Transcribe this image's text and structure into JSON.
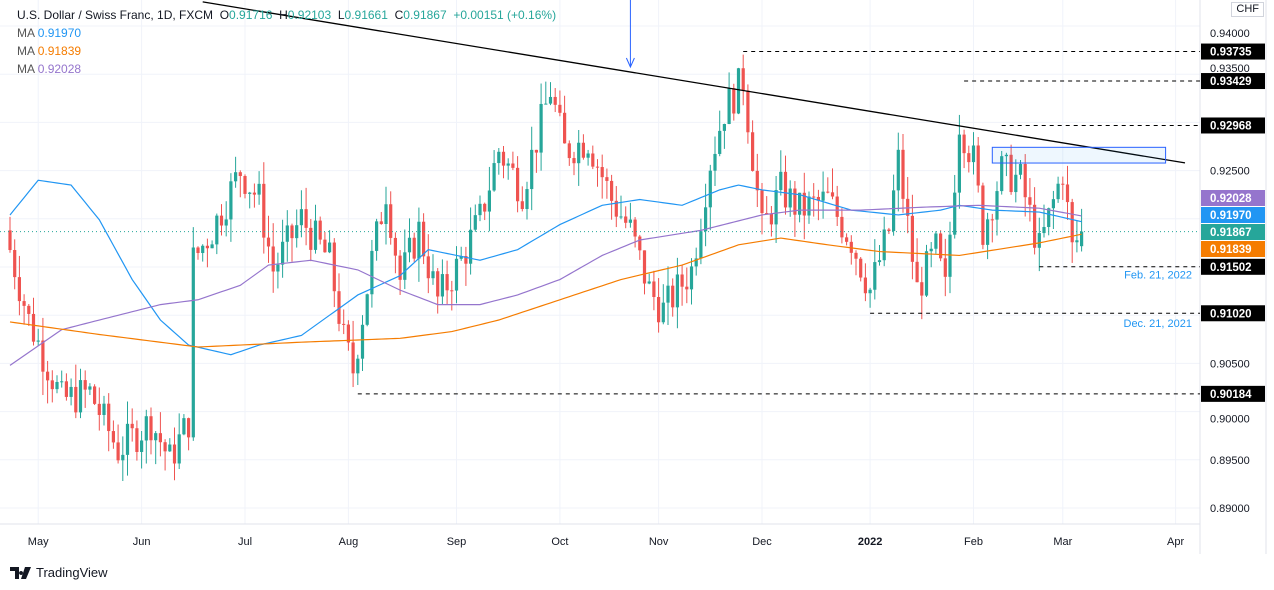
{
  "header": {
    "symbol": "U.S. Dollar / Swiss Franc, 1D, FXCM",
    "o_label": "O",
    "o": "0.91716",
    "h_label": "H",
    "h": "0.92103",
    "l_label": "L",
    "l": "0.91661",
    "c_label": "C",
    "c": "0.91867",
    "change": "+0.00151 (+0.16%)",
    "mas": [
      {
        "label": "MA",
        "value": "0.91970",
        "color": "#2196f3"
      },
      {
        "label": "MA",
        "value": "0.91839",
        "color": "#f57c00"
      },
      {
        "label": "MA",
        "value": "0.92028",
        "color": "#9575cd"
      }
    ]
  },
  "currency": "CHF",
  "brand": "TradingView",
  "chart_data": {
    "type": "candlestick",
    "ylim": [
      0.888,
      0.9425
    ],
    "y_ticks": [
      "0.94000",
      "0.93500",
      "0.92500",
      "0.90500",
      "0.90000",
      "0.89500",
      "0.89000"
    ],
    "y_tick_values": [
      0.94,
      0.935,
      0.925,
      0.905,
      0.9,
      0.895,
      0.89
    ],
    "x_ticks": [
      {
        "label": "May",
        "i": 6
      },
      {
        "label": "Jun",
        "i": 28
      },
      {
        "label": "Jul",
        "i": 50
      },
      {
        "label": "Aug",
        "i": 72
      },
      {
        "label": "Sep",
        "i": 95
      },
      {
        "label": "Oct",
        "i": 117
      },
      {
        "label": "Nov",
        "i": 138
      },
      {
        "label": "Dec",
        "i": 160
      },
      {
        "label": "2022",
        "i": 183
      },
      {
        "label": "Feb",
        "i": 205
      },
      {
        "label": "Mar",
        "i": 224
      },
      {
        "label": "Apr",
        "i": 248
      }
    ],
    "n_days": 229,
    "close_anchors": [
      [
        0,
        0.9168
      ],
      [
        4,
        0.9095
      ],
      [
        11,
        0.9012
      ],
      [
        17,
        0.902
      ],
      [
        23,
        0.896
      ],
      [
        30,
        0.899
      ],
      [
        34,
        0.895
      ],
      [
        38,
        0.899
      ],
      [
        39,
        0.9157
      ],
      [
        43,
        0.9188
      ],
      [
        49,
        0.925
      ],
      [
        53,
        0.922
      ],
      [
        56,
        0.9147
      ],
      [
        62,
        0.92
      ],
      [
        68,
        0.9157
      ],
      [
        71,
        0.9074
      ],
      [
        73,
        0.9043
      ],
      [
        77,
        0.9157
      ],
      [
        80,
        0.923
      ],
      [
        83,
        0.9137
      ],
      [
        87,
        0.9188
      ],
      [
        91,
        0.9116
      ],
      [
        96,
        0.9157
      ],
      [
        100,
        0.92
      ],
      [
        104,
        0.9271
      ],
      [
        109,
        0.923
      ],
      [
        115,
        0.9334
      ],
      [
        118,
        0.9271
      ],
      [
        123,
        0.9282
      ],
      [
        128,
        0.922
      ],
      [
        132,
        0.9188
      ],
      [
        136,
        0.9126
      ],
      [
        139,
        0.9105
      ],
      [
        145,
        0.9147
      ],
      [
        149,
        0.926
      ],
      [
        152,
        0.9313
      ],
      [
        156,
        0.9344
      ],
      [
        160,
        0.9188
      ],
      [
        164,
        0.923
      ],
      [
        168,
        0.9209
      ],
      [
        174,
        0.922
      ],
      [
        179,
        0.9178
      ],
      [
        183,
        0.9126
      ],
      [
        187,
        0.9188
      ],
      [
        189,
        0.926
      ],
      [
        193,
        0.9126
      ],
      [
        197,
        0.9168
      ],
      [
        199,
        0.9126
      ],
      [
        202,
        0.9302
      ],
      [
        205,
        0.926
      ],
      [
        207,
        0.9188
      ],
      [
        211,
        0.925
      ],
      [
        215,
        0.924
      ],
      [
        219,
        0.9168
      ],
      [
        224,
        0.925
      ],
      [
        226,
        0.9168
      ],
      [
        228,
        0.9187
      ]
    ],
    "last_candle": {
      "o": 0.91716,
      "h": 0.92103,
      "l": 0.91661,
      "c": 0.91867
    },
    "ma_series": [
      {
        "name": "MA blue",
        "color": "#2196f3",
        "points": [
          [
            0,
            0.9204
          ],
          [
            6,
            0.924
          ],
          [
            13,
            0.9235
          ],
          [
            19,
            0.9199
          ],
          [
            26,
            0.9137
          ],
          [
            32,
            0.9095
          ],
          [
            38,
            0.9069
          ],
          [
            47,
            0.9059
          ],
          [
            53,
            0.9069
          ],
          [
            62,
            0.9079
          ],
          [
            68,
            0.91
          ],
          [
            74,
            0.9121
          ],
          [
            83,
            0.9141
          ],
          [
            89,
            0.9168
          ],
          [
            100,
            0.9157
          ],
          [
            108,
            0.9168
          ],
          [
            117,
            0.9194
          ],
          [
            126,
            0.9214
          ],
          [
            134,
            0.922
          ],
          [
            143,
            0.9214
          ],
          [
            151,
            0.923
          ],
          [
            155,
            0.9235
          ],
          [
            160,
            0.923
          ],
          [
            168,
            0.9225
          ],
          [
            179,
            0.9209
          ],
          [
            189,
            0.9204
          ],
          [
            198,
            0.9209
          ],
          [
            202,
            0.9214
          ],
          [
            209,
            0.9209
          ],
          [
            219,
            0.9207
          ],
          [
            228,
            0.9197
          ]
        ]
      },
      {
        "name": "MA purple",
        "color": "#9575cd",
        "points": [
          [
            0,
            0.9048
          ],
          [
            11,
            0.9085
          ],
          [
            19,
            0.9095
          ],
          [
            32,
            0.9111
          ],
          [
            40,
            0.9116
          ],
          [
            49,
            0.9131
          ],
          [
            55,
            0.9152
          ],
          [
            64,
            0.9157
          ],
          [
            74,
            0.9147
          ],
          [
            83,
            0.9126
          ],
          [
            91,
            0.9111
          ],
          [
            100,
            0.9111
          ],
          [
            108,
            0.9121
          ],
          [
            117,
            0.9137
          ],
          [
            126,
            0.9162
          ],
          [
            134,
            0.9178
          ],
          [
            147,
            0.9188
          ],
          [
            160,
            0.9204
          ],
          [
            168,
            0.9209
          ],
          [
            181,
            0.9209
          ],
          [
            194,
            0.9212
          ],
          [
            206,
            0.9214
          ],
          [
            219,
            0.9211
          ],
          [
            228,
            0.9203
          ]
        ]
      },
      {
        "name": "MA orange",
        "color": "#f57c00",
        "points": [
          [
            0,
            0.9093
          ],
          [
            19,
            0.908
          ],
          [
            40,
            0.9067
          ],
          [
            62,
            0.9072
          ],
          [
            83,
            0.9076
          ],
          [
            94,
            0.9083
          ],
          [
            104,
            0.9095
          ],
          [
            117,
            0.9116
          ],
          [
            130,
            0.9137
          ],
          [
            143,
            0.9152
          ],
          [
            155,
            0.9173
          ],
          [
            164,
            0.918
          ],
          [
            174,
            0.9173
          ],
          [
            185,
            0.9166
          ],
          [
            202,
            0.9162
          ],
          [
            219,
            0.9175
          ],
          [
            228,
            0.9184
          ]
        ]
      }
    ],
    "levels": [
      {
        "value": "0.93735",
        "from": 156
      },
      {
        "value": "0.93429",
        "from": 203
      },
      {
        "value": "0.92968",
        "from": 211
      },
      {
        "value": "0.91502",
        "from": 219
      },
      {
        "value": "0.91020",
        "from": 183
      },
      {
        "value": "0.90184",
        "from": 74
      }
    ],
    "level_notes": [
      {
        "text": "Feb. 21, 2022",
        "price": 0.9138
      },
      {
        "text": "Dec. 21, 2021",
        "price": 0.9088
      }
    ],
    "trendline": [
      [
        41,
        0.9425
      ],
      [
        250,
        0.9258
      ]
    ],
    "arrow_at": 132,
    "zone": {
      "from": 209,
      "to": 248,
      "top": 0.927,
      "bottom": 0.9262
    },
    "price_tags": [
      {
        "value": "0.92028",
        "color": "#9575cd"
      },
      {
        "value": "0.91970",
        "color": "#2196f3"
      },
      {
        "value": "0.91867",
        "color": "#26a69a"
      },
      {
        "value": "0.91839",
        "color": "#f57c00"
      },
      {
        "value": "0.91502",
        "color": "#000000"
      },
      {
        "value": "0.91020",
        "color": "#000000"
      },
      {
        "value": "0.93735",
        "color": "#000000"
      },
      {
        "value": "0.93429",
        "color": "#000000"
      },
      {
        "value": "0.92968",
        "color": "#000000"
      },
      {
        "value": "0.90184",
        "color": "#000000"
      }
    ],
    "colors": {
      "up": "#26a69a",
      "down": "#ef5350"
    }
  }
}
